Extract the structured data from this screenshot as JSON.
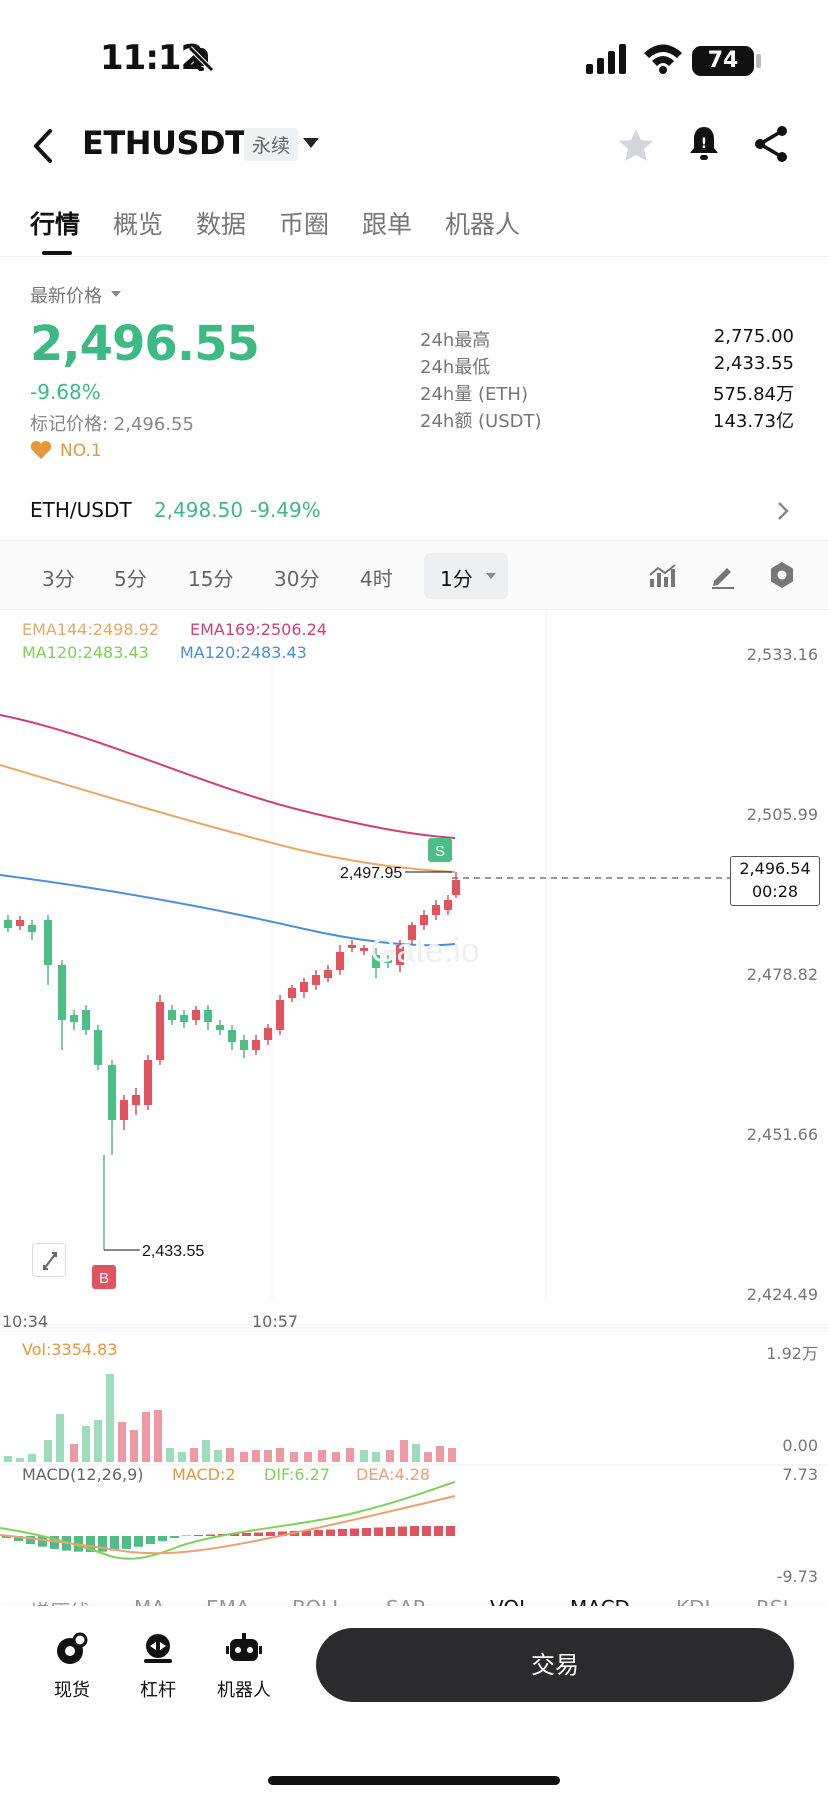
{
  "status_bar": {
    "time": "11:12",
    "battery": "74"
  },
  "header": {
    "title": "ETHUSDT",
    "tag": "永续"
  },
  "tabs": [
    {
      "label": "行情",
      "active": true
    },
    {
      "label": "概览"
    },
    {
      "label": "数据"
    },
    {
      "label": "币圈"
    },
    {
      "label": "跟单"
    },
    {
      "label": "机器人"
    }
  ],
  "summary": {
    "latest_label": "最新价格",
    "price": "2,496.55",
    "change": "-9.68%",
    "mark_price": "标记价格: 2,496.55",
    "rank": "NO.1",
    "stats": [
      {
        "label": "24h最高",
        "value": "2,775.00"
      },
      {
        "label": "24h最低",
        "value": "2,433.55"
      },
      {
        "label": "24h量 (ETH)",
        "value": "575.84万"
      },
      {
        "label": "24h额 (USDT)",
        "value": "143.73亿"
      }
    ]
  },
  "spot_pair": {
    "name": "ETH/USDT",
    "price": "2,498.50",
    "change": "-9.49%"
  },
  "intervals": [
    "3分",
    "5分",
    "15分",
    "30分",
    "4时"
  ],
  "interval_active": "1分",
  "chart": {
    "legend": {
      "ema144": "EMA144:2498.92",
      "ema169": "EMA169:2506.24",
      "ma120_green": "MA120:2483.43",
      "ma120_blue": "MA120:2483.43"
    },
    "y_ticks": [
      "2,533.16",
      "2,505.99",
      "2,478.82",
      "2,451.66",
      "2,424.49"
    ],
    "x_ticks": [
      "10:34",
      "10:57"
    ],
    "high_marker": "2,497.95",
    "low_marker": "2,433.55",
    "current_price": "2,496.54",
    "countdown": "00:28",
    "sell_marker": "S",
    "buy_marker": "B",
    "watermark": "Gate.io",
    "volume": {
      "label": "Vol:3354.83",
      "max": "1.92万",
      "min": "0.00"
    },
    "macd": {
      "label": "MACD(12,26,9)",
      "macd": "MACD:2",
      "dif": "DIF:6.27",
      "dea": "DEA:4.28",
      "max": "7.73",
      "min": "-9.73"
    },
    "colors": {
      "up": "#e0535f",
      "down": "#4cbe86",
      "ema144": "#e8a866",
      "ema169": "#cf3f78",
      "ma120": "#4a90d9"
    }
  },
  "indicator_tabs": [
    "增压线",
    "MA",
    "EMA",
    "BOLL",
    "SAR",
    "VOL",
    "MACD",
    "KDJ",
    "RSI"
  ],
  "bottom_nav": [
    {
      "label": "现货",
      "icon": "spot-icon"
    },
    {
      "label": "杠杆",
      "icon": "margin-icon"
    },
    {
      "label": "机器人",
      "icon": "robot-icon"
    }
  ],
  "trade_button": "交易"
}
